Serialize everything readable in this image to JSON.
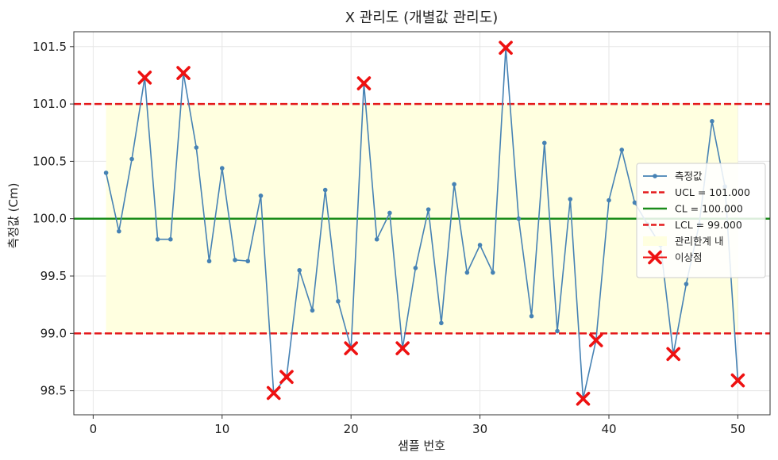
{
  "chart_data": {
    "type": "line",
    "title": "X 관리도 (개별값 관리도)",
    "xlabel": "샘플 번호",
    "ylabel": "측정값 (Cm)",
    "xlim": [
      -1.5,
      52.5
    ],
    "ylim": [
      98.29,
      101.63
    ],
    "x_ticks": [
      0,
      10,
      20,
      30,
      40,
      50
    ],
    "y_ticks": [
      98.5,
      99.0,
      99.5,
      100.0,
      100.5,
      101.0,
      101.5
    ],
    "y_tick_labels": [
      "98.5",
      "99.0",
      "99.5",
      "100.0",
      "100.5",
      "101.0",
      "101.5"
    ],
    "grid": true,
    "legend_position": "right",
    "control_limits": {
      "ucl": 101.0,
      "cl": 100.0,
      "lcl": 99.0
    },
    "shaded_band": {
      "from_x": 1,
      "to_x": 50,
      "y_low": 99.0,
      "y_high": 101.0
    },
    "series": [
      {
        "name": "측정값",
        "x": [
          1,
          2,
          3,
          4,
          5,
          6,
          7,
          8,
          9,
          10,
          11,
          12,
          13,
          14,
          15,
          16,
          17,
          18,
          19,
          20,
          21,
          22,
          23,
          24,
          25,
          26,
          27,
          28,
          29,
          30,
          31,
          32,
          33,
          34,
          35,
          36,
          37,
          38,
          39,
          40,
          41,
          42,
          43,
          44,
          45,
          46,
          47,
          48,
          49,
          50
        ],
        "values": [
          100.4,
          99.89,
          100.52,
          101.23,
          99.82,
          99.82,
          101.27,
          100.62,
          99.63,
          100.44,
          99.64,
          99.63,
          100.2,
          98.48,
          98.62,
          99.55,
          99.2,
          100.25,
          99.28,
          98.87,
          101.18,
          99.82,
          100.05,
          98.87,
          99.57,
          100.08,
          99.09,
          100.3,
          99.53,
          99.77,
          99.53,
          101.49,
          100.0,
          99.15,
          100.66,
          99.02,
          100.17,
          98.43,
          98.94,
          100.16,
          100.6,
          100.14,
          99.95,
          99.77,
          98.82,
          99.43,
          99.95,
          100.85,
          100.28,
          98.59
        ]
      }
    ],
    "outliers": {
      "name": "이상점",
      "x": [
        4,
        7,
        14,
        15,
        20,
        21,
        24,
        32,
        38,
        39,
        45,
        50
      ],
      "values": [
        101.23,
        101.27,
        98.48,
        98.62,
        98.87,
        101.18,
        98.87,
        101.49,
        98.43,
        98.94,
        98.82,
        98.59
      ]
    },
    "legend": [
      {
        "label": "측정값",
        "kind": "series-line",
        "color": "#4682b4"
      },
      {
        "label": "UCL = 101.000",
        "kind": "dashed",
        "color": "#e41a1c"
      },
      {
        "label": "CL = 100.000",
        "kind": "solid",
        "color": "#1a8c1a"
      },
      {
        "label": "LCL = 99.000",
        "kind": "dashed",
        "color": "#e41a1c"
      },
      {
        "label": "관리한계 내",
        "kind": "patch",
        "color": "#ffffe0"
      },
      {
        "label": "이상점",
        "kind": "marker-x",
        "color": "#ee1111"
      }
    ],
    "colors": {
      "series": "#4682b4",
      "limit": "#e41a1c",
      "center": "#1a8c1a",
      "band": "#ffffe0",
      "outlier": "#ee1111",
      "grid": "#e6e6e6"
    }
  }
}
